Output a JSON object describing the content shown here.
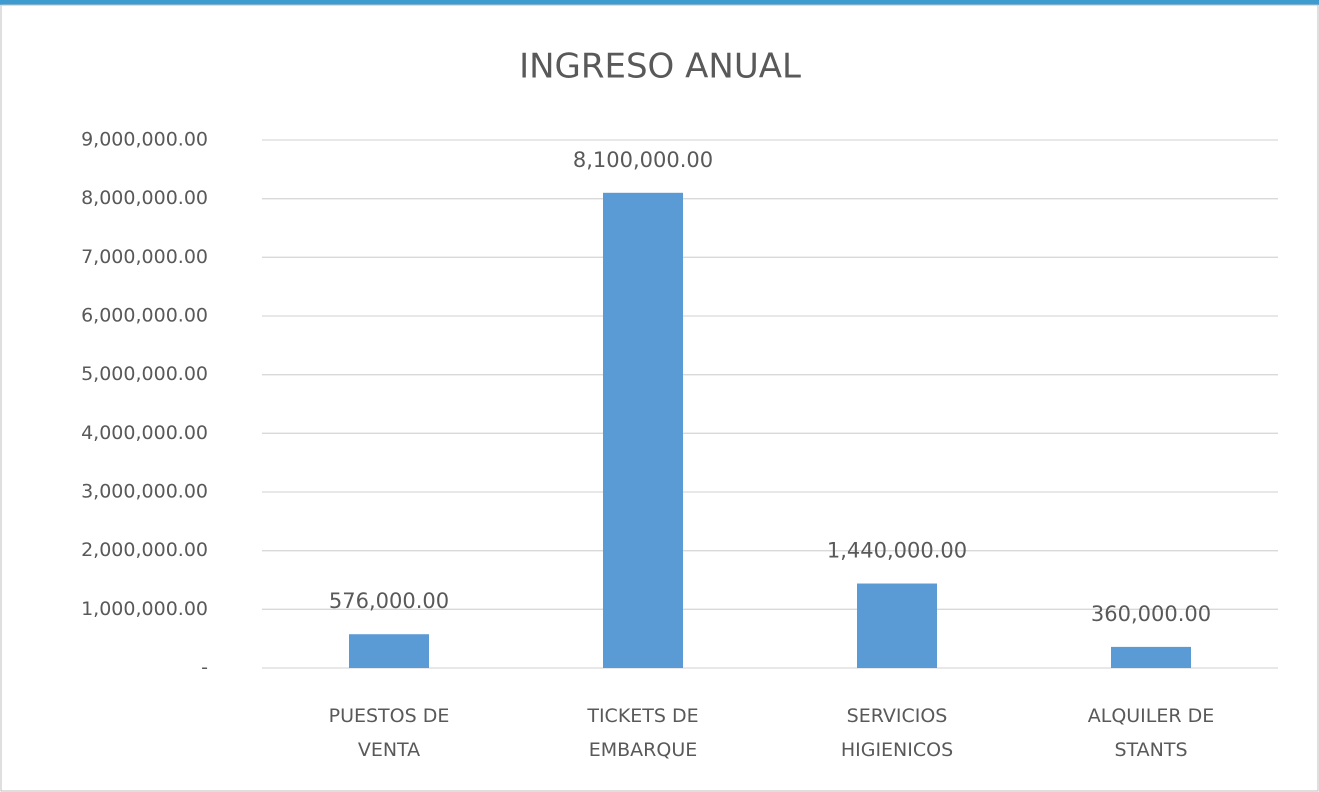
{
  "chart_data": {
    "type": "bar",
    "title": "INGRESO ANUAL",
    "categories": [
      "PUESTOS DE VENTA",
      "TICKETS DE EMBARQUE",
      "SERVICIOS HIGIENICOS",
      "ALQUILER DE STANTS"
    ],
    "values": [
      576000,
      8100000,
      1440000,
      360000
    ],
    "value_labels": [
      "576,000.00",
      "8,100,000.00",
      "1,440,000.00",
      "360,000.00"
    ],
    "color": "#5b9bd5",
    "ylim": [
      0,
      9000000
    ],
    "yticks": [
      {
        "value": 0,
        "label": "-"
      },
      {
        "value": 1000000,
        "label": "1,000,000.00"
      },
      {
        "value": 2000000,
        "label": "2,000,000.00"
      },
      {
        "value": 3000000,
        "label": "3,000,000.00"
      },
      {
        "value": 4000000,
        "label": "4,000,000.00"
      },
      {
        "value": 5000000,
        "label": "5,000,000.00"
      },
      {
        "value": 6000000,
        "label": "6,000,000.00"
      },
      {
        "value": 7000000,
        "label": "7,000,000.00"
      },
      {
        "value": 8000000,
        "label": "8,000,000.00"
      },
      {
        "value": 9000000,
        "label": "9,000,000.00"
      }
    ],
    "grid": true
  }
}
